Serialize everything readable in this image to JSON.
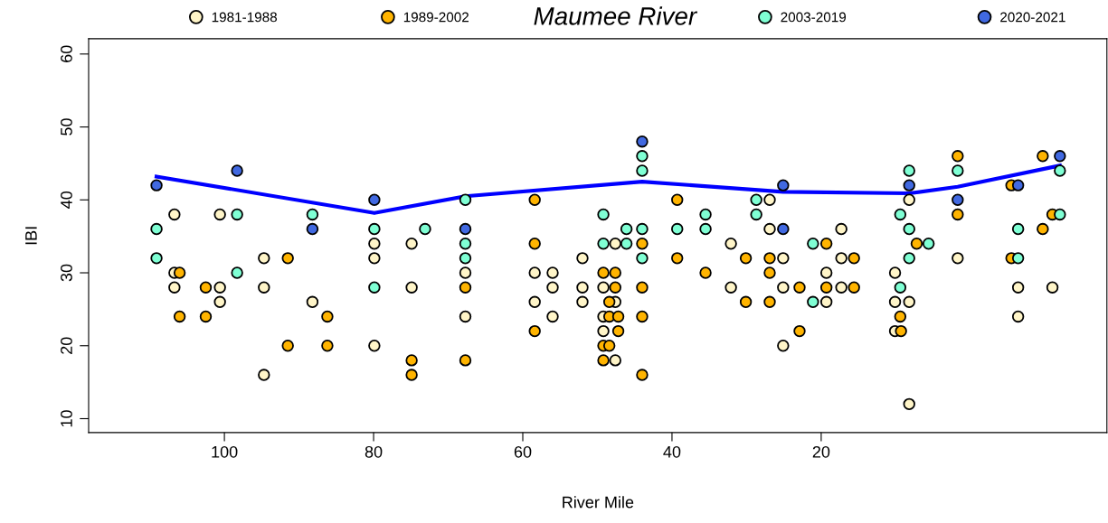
{
  "chart_data": {
    "type": "scatter",
    "title": "Maumee River",
    "xlabel": "River Mile",
    "ylabel": "IBI",
    "xlim": [
      118.2,
      -18.3
    ],
    "xticks": [
      100,
      80,
      60,
      40,
      20
    ],
    "ylim": [
      8.1,
      62.1
    ],
    "yticks": [
      10,
      20,
      30,
      40,
      50,
      60
    ],
    "grid": false,
    "legend": "top",
    "marker": "circle",
    "series": [
      {
        "name": "1981-1988",
        "color": "#fff5c8",
        "x": [
          106.7,
          106.7,
          106.7,
          100.6,
          100.6,
          100.6,
          94.7,
          94.7,
          94.7,
          88.2,
          79.9,
          79.9,
          79.9,
          74.9,
          74.9,
          67.7,
          67.7,
          58.4,
          58.4,
          56.0,
          56.0,
          56.0,
          52.0,
          52.0,
          52.0,
          49.2,
          49.2,
          49.2,
          47.6,
          47.6,
          47.6,
          32.1,
          32.1,
          26.9,
          26.9,
          25.1,
          25.1,
          25.1,
          19.3,
          19.3,
          17.3,
          17.3,
          17.3,
          10.1,
          10.1,
          10.1,
          8.2,
          8.2,
          8.2,
          1.7,
          -6.4,
          -6.4,
          -11.0
        ],
        "values": [
          38,
          30,
          28,
          38,
          28,
          26,
          32,
          28,
          16,
          26,
          34,
          32,
          20,
          34,
          28,
          30,
          24,
          30,
          26,
          30,
          28,
          24,
          32,
          28,
          26,
          28,
          24,
          22,
          34,
          26,
          18,
          34,
          28,
          40,
          36,
          32,
          28,
          20,
          30,
          26,
          36,
          32,
          28,
          30,
          26,
          22,
          40,
          26,
          12,
          32,
          28,
          24,
          28
        ]
      },
      {
        "name": "1989-2002",
        "color": "#ffb400",
        "x": [
          106.0,
          106.0,
          102.5,
          102.5,
          91.5,
          91.5,
          86.2,
          86.2,
          74.9,
          74.9,
          67.7,
          67.7,
          58.4,
          58.4,
          58.4,
          49.2,
          49.2,
          49.2,
          48.4,
          48.4,
          48.4,
          47.6,
          47.6,
          47.2,
          47.2,
          44.0,
          44.0,
          44.0,
          44.0,
          39.3,
          39.3,
          35.5,
          30.1,
          30.1,
          26.9,
          26.9,
          26.9,
          22.9,
          22.9,
          19.3,
          19.3,
          15.6,
          15.6,
          9.4,
          9.3,
          7.2,
          1.7,
          1.7,
          -5.5,
          -5.5,
          -9.7,
          -9.7,
          -11.0
        ],
        "values": [
          30,
          24,
          28,
          24,
          32,
          20,
          24,
          20,
          18,
          16,
          28,
          18,
          40,
          34,
          22,
          30,
          20,
          18,
          26,
          24,
          20,
          30,
          28,
          24,
          22,
          34,
          28,
          24,
          16,
          40,
          32,
          30,
          32,
          26,
          32,
          30,
          26,
          28,
          22,
          34,
          28,
          32,
          28,
          24,
          22,
          34,
          46,
          38,
          42,
          32,
          46,
          36,
          38
        ]
      },
      {
        "name": "2003-2019",
        "color": "#7fffd4",
        "x": [
          109.1,
          109.1,
          98.3,
          98.3,
          88.2,
          79.9,
          79.9,
          73.1,
          67.7,
          67.7,
          67.7,
          49.2,
          49.2,
          46.1,
          46.1,
          44.0,
          44.0,
          44.0,
          44.0,
          39.3,
          35.5,
          35.5,
          28.7,
          28.7,
          21.1,
          21.1,
          9.4,
          9.4,
          8.2,
          8.2,
          8.2,
          5.6,
          1.7,
          -6.4,
          -6.4,
          -12.0,
          -12.0
        ],
        "values": [
          36,
          32,
          38,
          30,
          38,
          36,
          28,
          36,
          40,
          34,
          32,
          38,
          34,
          36,
          34,
          46,
          44,
          36,
          32,
          36,
          38,
          36,
          40,
          38,
          34,
          26,
          38,
          28,
          44,
          36,
          32,
          34,
          44,
          36,
          32,
          44,
          38
        ]
      },
      {
        "name": "2020-2021",
        "color": "#4169e1",
        "x": [
          109.1,
          98.3,
          88.2,
          79.9,
          67.7,
          44.0,
          25.1,
          25.1,
          8.2,
          1.7,
          -6.4,
          -12.0
        ],
        "values": [
          42,
          44,
          36,
          40,
          36,
          48,
          42,
          36,
          42,
          40,
          42,
          46
        ]
      },
      {
        "type": "line",
        "color": "#0000ff",
        "marker": "none",
        "x": [
          109.1,
          79.9,
          67.7,
          44.0,
          25.1,
          8.2,
          1.7,
          -12.0
        ],
        "values": [
          43.2,
          38.2,
          40.5,
          42.5,
          41.1,
          40.9,
          41.8,
          44.7
        ]
      }
    ]
  }
}
